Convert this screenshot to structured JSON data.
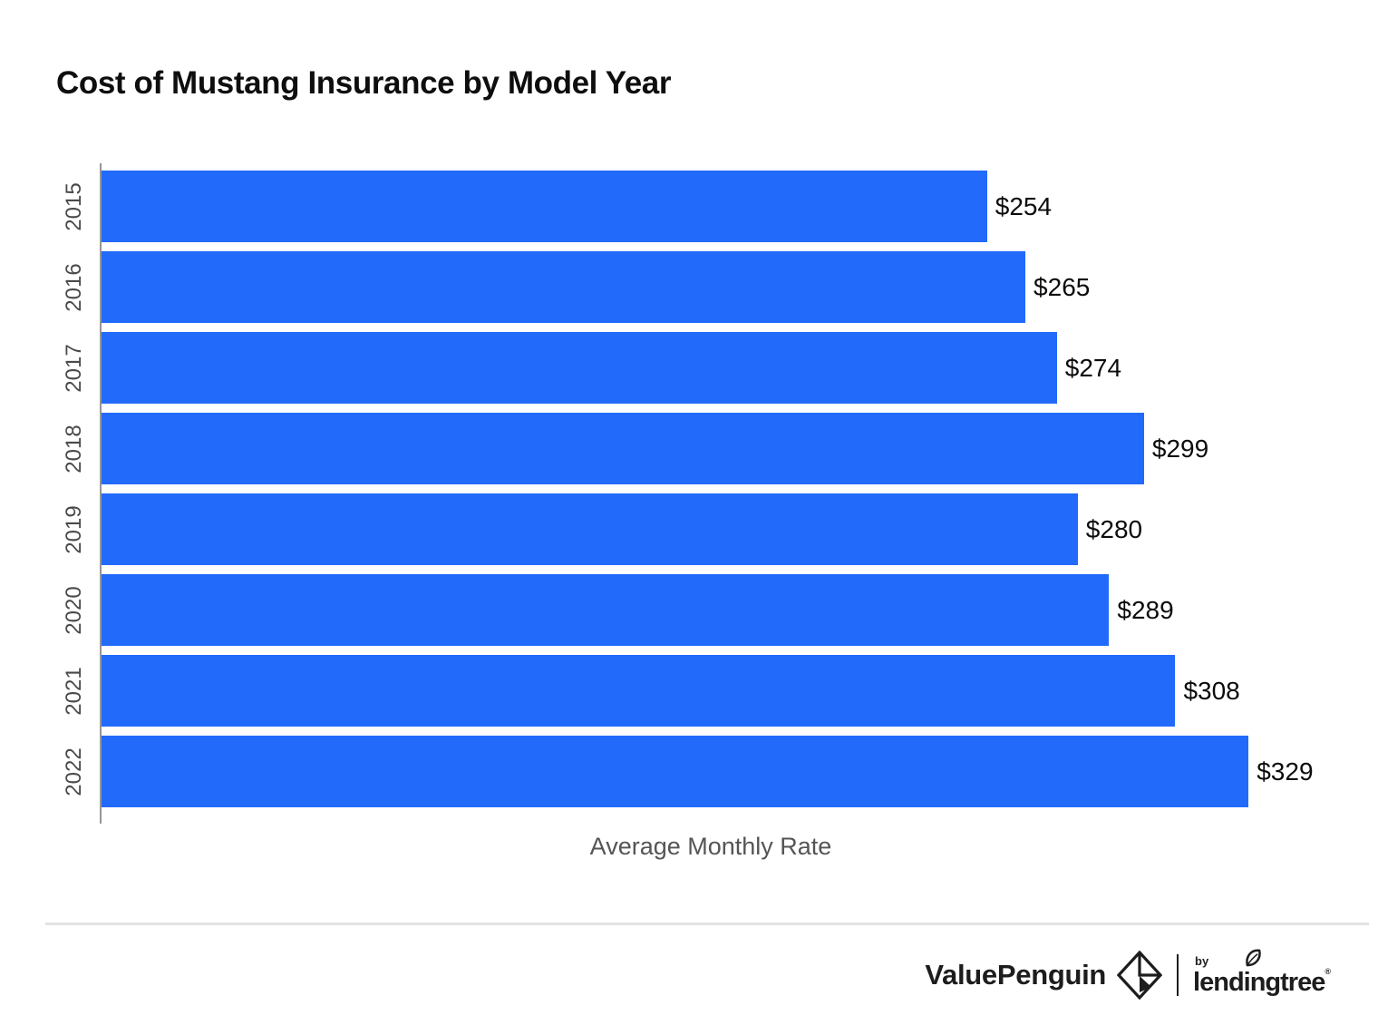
{
  "title": "Cost of Mustang Insurance by Model Year",
  "chart_data": {
    "type": "bar",
    "orientation": "horizontal",
    "title": "Cost of Mustang Insurance by Model Year",
    "categories": [
      "2015",
      "2016",
      "2017",
      "2018",
      "2019",
      "2020",
      "2021",
      "2022"
    ],
    "values": [
      254,
      265,
      274,
      299,
      280,
      289,
      308,
      329
    ],
    "value_labels": [
      "$254",
      "$265",
      "$274",
      "$299",
      "$280",
      "$289",
      "$308",
      "$329"
    ],
    "xlabel": "Average Monthly Rate",
    "ylabel": "",
    "xlim": [
      0,
      350
    ],
    "grid": false,
    "legend": false,
    "bar_color": "#226afa"
  },
  "footer": {
    "brand": "ValuePenguin",
    "byline": "by",
    "partner": "lendingtree",
    "trademark": "®"
  }
}
